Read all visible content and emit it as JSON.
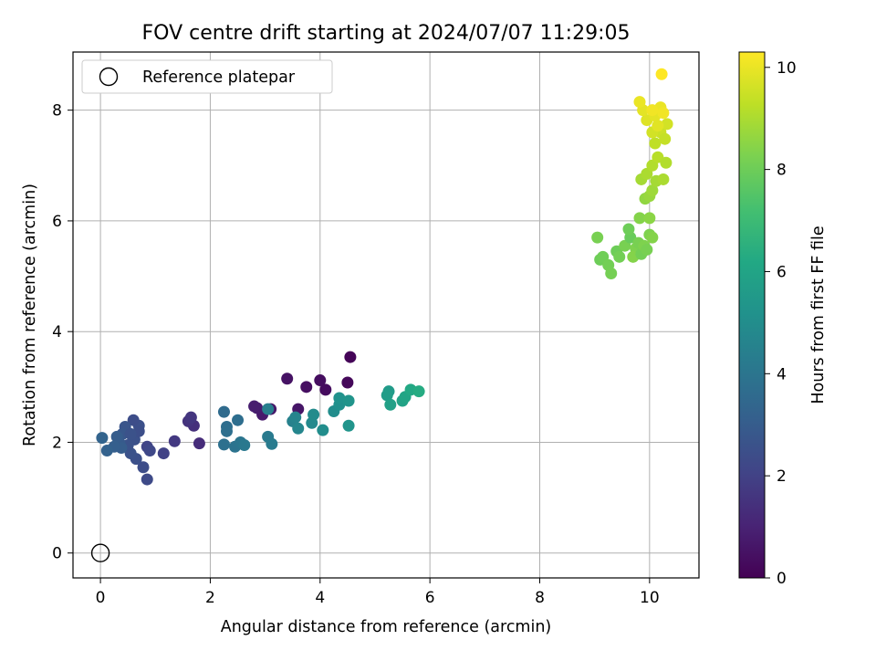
{
  "chart_data": {
    "type": "scatter",
    "title": "FOV centre drift starting at 2024/07/07 11:29:05",
    "xlabel": "Angular distance from reference (arcmin)",
    "ylabel": "Rotation from reference (arcmin)",
    "xlim": [
      -0.5,
      10.9
    ],
    "ylim": [
      -0.45,
      9.05
    ],
    "xticks": [
      "0",
      "2",
      "4",
      "6",
      "8",
      "10"
    ],
    "yticks": [
      "0",
      "2",
      "4",
      "6",
      "8"
    ],
    "grid": true,
    "legend": {
      "position": "top-left",
      "entries": [
        {
          "label": "Reference platepar",
          "marker": "open-circle"
        }
      ]
    },
    "reference_point": {
      "x": 0,
      "y": 0
    },
    "colorbar": {
      "label": "Hours from first FF file",
      "colormap": "viridis",
      "range": [
        0,
        10.3
      ],
      "ticks": [
        "0",
        "2",
        "4",
        "6",
        "8",
        "10"
      ]
    },
    "points": [
      {
        "x": 4.55,
        "y": 3.54,
        "c": 0.1
      },
      {
        "x": 4.5,
        "y": 3.08,
        "c": 0.2
      },
      {
        "x": 4.1,
        "y": 2.95,
        "c": 0.3
      },
      {
        "x": 4.0,
        "y": 3.12,
        "c": 0.35
      },
      {
        "x": 3.75,
        "y": 3.0,
        "c": 0.4
      },
      {
        "x": 3.4,
        "y": 3.15,
        "c": 0.5
      },
      {
        "x": 3.6,
        "y": 2.6,
        "c": 0.6
      },
      {
        "x": 3.1,
        "y": 2.6,
        "c": 0.7
      },
      {
        "x": 2.95,
        "y": 2.5,
        "c": 0.75
      },
      {
        "x": 2.85,
        "y": 2.62,
        "c": 0.8
      },
      {
        "x": 2.8,
        "y": 2.65,
        "c": 0.85
      },
      {
        "x": 1.8,
        "y": 1.98,
        "c": 1.3
      },
      {
        "x": 1.7,
        "y": 2.3,
        "c": 1.4
      },
      {
        "x": 1.6,
        "y": 2.38,
        "c": 1.5
      },
      {
        "x": 1.65,
        "y": 2.45,
        "c": 1.6
      },
      {
        "x": 1.35,
        "y": 2.02,
        "c": 1.7
      },
      {
        "x": 1.15,
        "y": 1.8,
        "c": 2.0
      },
      {
        "x": 0.85,
        "y": 1.92,
        "c": 2.1
      },
      {
        "x": 0.9,
        "y": 1.85,
        "c": 2.2
      },
      {
        "x": 0.85,
        "y": 1.33,
        "c": 2.3
      },
      {
        "x": 0.78,
        "y": 1.55,
        "c": 2.4
      },
      {
        "x": 0.65,
        "y": 1.7,
        "c": 2.5
      },
      {
        "x": 0.55,
        "y": 1.8,
        "c": 2.6
      },
      {
        "x": 0.7,
        "y": 2.3,
        "c": 2.5
      },
      {
        "x": 0.6,
        "y": 2.4,
        "c": 2.4
      },
      {
        "x": 0.62,
        "y": 2.05,
        "c": 2.55
      },
      {
        "x": 0.5,
        "y": 1.95,
        "c": 2.6
      },
      {
        "x": 0.45,
        "y": 2.28,
        "c": 2.7
      },
      {
        "x": 0.4,
        "y": 2.15,
        "c": 2.8
      },
      {
        "x": 0.35,
        "y": 1.98,
        "c": 2.9
      },
      {
        "x": 0.3,
        "y": 2.1,
        "c": 3.0
      },
      {
        "x": 0.38,
        "y": 1.9,
        "c": 3.0
      },
      {
        "x": 0.25,
        "y": 1.92,
        "c": 3.1
      },
      {
        "x": 0.12,
        "y": 1.85,
        "c": 3.2
      },
      {
        "x": 0.03,
        "y": 2.08,
        "c": 3.3
      },
      {
        "x": 0.7,
        "y": 2.2,
        "c": 2.45
      },
      {
        "x": 0.55,
        "y": 2.15,
        "c": 2.6
      },
      {
        "x": 2.25,
        "y": 2.55,
        "c": 3.6
      },
      {
        "x": 2.3,
        "y": 2.28,
        "c": 3.7
      },
      {
        "x": 2.25,
        "y": 1.96,
        "c": 3.8
      },
      {
        "x": 2.3,
        "y": 2.2,
        "c": 3.75
      },
      {
        "x": 2.5,
        "y": 2.4,
        "c": 3.7
      },
      {
        "x": 2.45,
        "y": 1.92,
        "c": 3.9
      },
      {
        "x": 2.55,
        "y": 2.0,
        "c": 4.0
      },
      {
        "x": 2.62,
        "y": 1.95,
        "c": 4.1
      },
      {
        "x": 3.05,
        "y": 2.1,
        "c": 4.2
      },
      {
        "x": 3.12,
        "y": 1.97,
        "c": 4.25
      },
      {
        "x": 3.05,
        "y": 2.6,
        "c": 4.4
      },
      {
        "x": 3.5,
        "y": 2.38,
        "c": 4.5
      },
      {
        "x": 3.55,
        "y": 2.45,
        "c": 4.6
      },
      {
        "x": 3.6,
        "y": 2.25,
        "c": 4.7
      },
      {
        "x": 3.85,
        "y": 2.35,
        "c": 4.8
      },
      {
        "x": 3.88,
        "y": 2.5,
        "c": 4.9
      },
      {
        "x": 4.05,
        "y": 2.22,
        "c": 5.0
      },
      {
        "x": 4.25,
        "y": 2.56,
        "c": 5.0
      },
      {
        "x": 4.35,
        "y": 2.68,
        "c": 5.1
      },
      {
        "x": 4.35,
        "y": 2.8,
        "c": 5.2
      },
      {
        "x": 4.52,
        "y": 2.75,
        "c": 5.3
      },
      {
        "x": 4.52,
        "y": 2.3,
        "c": 5.3
      },
      {
        "x": 5.25,
        "y": 2.92,
        "c": 5.6
      },
      {
        "x": 5.22,
        "y": 2.85,
        "c": 5.7
      },
      {
        "x": 5.28,
        "y": 2.68,
        "c": 5.8
      },
      {
        "x": 5.5,
        "y": 2.75,
        "c": 5.9
      },
      {
        "x": 5.55,
        "y": 2.82,
        "c": 6.0
      },
      {
        "x": 5.65,
        "y": 2.95,
        "c": 6.2
      },
      {
        "x": 5.8,
        "y": 2.92,
        "c": 6.3
      },
      {
        "x": 9.05,
        "y": 5.7,
        "c": 8.2
      },
      {
        "x": 9.1,
        "y": 5.3,
        "c": 8.0
      },
      {
        "x": 9.15,
        "y": 5.35,
        "c": 8.05
      },
      {
        "x": 9.25,
        "y": 5.2,
        "c": 8.1
      },
      {
        "x": 9.3,
        "y": 5.05,
        "c": 8.15
      },
      {
        "x": 9.4,
        "y": 5.45,
        "c": 8.0
      },
      {
        "x": 9.45,
        "y": 5.35,
        "c": 8.1
      },
      {
        "x": 9.55,
        "y": 5.55,
        "c": 8.2
      },
      {
        "x": 9.65,
        "y": 5.7,
        "c": 7.9
      },
      {
        "x": 9.62,
        "y": 5.85,
        "c": 8.0
      },
      {
        "x": 9.75,
        "y": 5.5,
        "c": 8.3
      },
      {
        "x": 9.7,
        "y": 5.35,
        "c": 8.4
      },
      {
        "x": 9.8,
        "y": 5.6,
        "c": 8.2
      },
      {
        "x": 9.85,
        "y": 5.4,
        "c": 8.1
      },
      {
        "x": 9.9,
        "y": 5.55,
        "c": 8.3
      },
      {
        "x": 9.95,
        "y": 5.48,
        "c": 8.2
      },
      {
        "x": 10.0,
        "y": 5.75,
        "c": 8.3
      },
      {
        "x": 10.05,
        "y": 5.7,
        "c": 8.4
      },
      {
        "x": 9.82,
        "y": 6.05,
        "c": 8.4
      },
      {
        "x": 10.0,
        "y": 6.05,
        "c": 8.5
      },
      {
        "x": 9.92,
        "y": 6.4,
        "c": 8.6
      },
      {
        "x": 10.0,
        "y": 6.45,
        "c": 8.7
      },
      {
        "x": 10.05,
        "y": 6.55,
        "c": 8.8
      },
      {
        "x": 10.12,
        "y": 6.72,
        "c": 8.9
      },
      {
        "x": 9.85,
        "y": 6.75,
        "c": 8.9
      },
      {
        "x": 9.95,
        "y": 6.85,
        "c": 9.0
      },
      {
        "x": 10.05,
        "y": 7.0,
        "c": 9.1
      },
      {
        "x": 10.15,
        "y": 7.15,
        "c": 9.2
      },
      {
        "x": 10.25,
        "y": 6.75,
        "c": 9.0
      },
      {
        "x": 10.3,
        "y": 7.05,
        "c": 9.1
      },
      {
        "x": 10.1,
        "y": 7.4,
        "c": 9.3
      },
      {
        "x": 10.2,
        "y": 7.6,
        "c": 9.5
      },
      {
        "x": 10.28,
        "y": 7.48,
        "c": 9.4
      },
      {
        "x": 10.32,
        "y": 7.75,
        "c": 9.6
      },
      {
        "x": 10.05,
        "y": 7.6,
        "c": 9.6
      },
      {
        "x": 9.95,
        "y": 7.82,
        "c": 9.8
      },
      {
        "x": 9.88,
        "y": 8.0,
        "c": 9.9
      },
      {
        "x": 9.82,
        "y": 8.15,
        "c": 10.0
      },
      {
        "x": 10.1,
        "y": 7.9,
        "c": 9.9
      },
      {
        "x": 10.2,
        "y": 8.05,
        "c": 10.0
      },
      {
        "x": 10.25,
        "y": 7.95,
        "c": 10.1
      },
      {
        "x": 10.15,
        "y": 7.72,
        "c": 9.85
      },
      {
        "x": 10.22,
        "y": 8.65,
        "c": 10.3
      },
      {
        "x": 10.05,
        "y": 8.0,
        "c": 10.1
      }
    ]
  }
}
